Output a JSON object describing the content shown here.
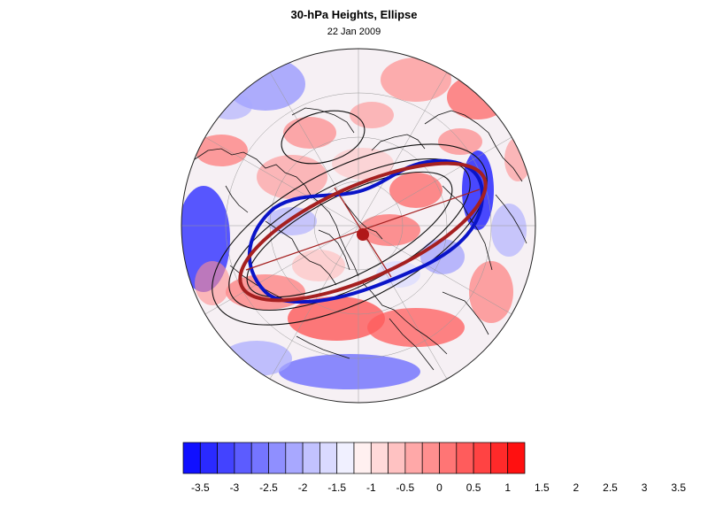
{
  "title": "30-hPa Heights, Ellipse",
  "subtitle": "22 Jan 2009",
  "map": {
    "projection": "polar-stereographic",
    "hemisphere": "northern",
    "field": "30-hPa height anomaly",
    "overlays": [
      "ellipse-fit",
      "vortex-edge-contour",
      "height-contours",
      "coastlines",
      "lat-lon-grid"
    ]
  },
  "colorbar": {
    "tick_labels": [
      "-3.5",
      "-3",
      "-2.5",
      "-2",
      "-1.5",
      "-1",
      "-0.5",
      "0",
      "0.5",
      "1",
      "1.5",
      "2",
      "2.5",
      "3",
      "3.5"
    ],
    "colors": [
      "#1010ff",
      "#2a2aff",
      "#4343ff",
      "#5c5cff",
      "#7575ff",
      "#8f8fff",
      "#a8a8ff",
      "#c2c2ff",
      "#dadaff",
      "#f0f0ff",
      "#fff0f0",
      "#ffdada",
      "#ffc2c2",
      "#ffa8a8",
      "#ff8f8f",
      "#ff7575",
      "#ff5c5c",
      "#ff4343",
      "#ff2a2a",
      "#ff1010"
    ]
  },
  "styles": {
    "ellipse_color": "#a52020",
    "vortex_edge_color": "#0a14c8",
    "contour_color": "#111111",
    "center_dot_color": "#b01818"
  }
}
